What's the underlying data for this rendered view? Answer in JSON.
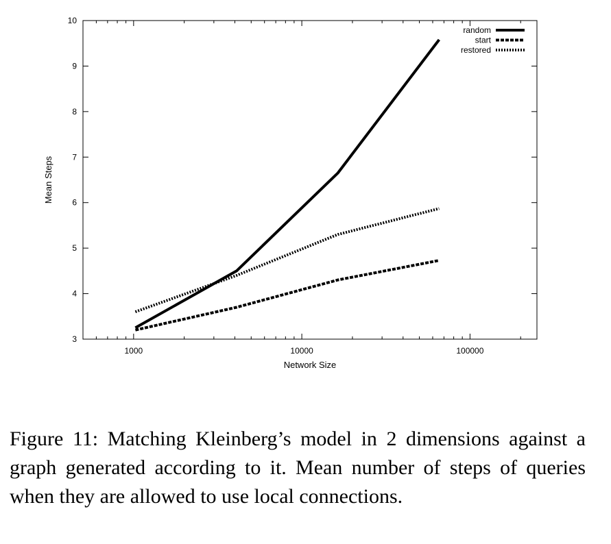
{
  "chart_data": {
    "type": "line",
    "title": "",
    "xlabel": "Network Size",
    "ylabel": "Mean Steps",
    "xscale": "log",
    "xlim": [
      500,
      250000
    ],
    "ylim": [
      3,
      10
    ],
    "x_ticks": [
      1000,
      10000,
      100000
    ],
    "x_tick_labels": [
      "1000",
      "10000",
      "100000"
    ],
    "y_ticks": [
      3,
      4,
      5,
      6,
      7,
      8,
      9,
      10
    ],
    "y_tick_labels": [
      "3",
      "4",
      "5",
      "6",
      "7",
      "8",
      "9",
      "10"
    ],
    "grid": false,
    "legend_position": "top-right",
    "series": [
      {
        "name": "random",
        "style": "solid",
        "x": [
          1024,
          4096,
          16384,
          65536
        ],
        "y": [
          3.25,
          4.5,
          6.65,
          9.58
        ]
      },
      {
        "name": "start",
        "style": "dashed",
        "x": [
          1024,
          4096,
          16384,
          65536
        ],
        "y": [
          3.2,
          3.7,
          4.3,
          4.73
        ]
      },
      {
        "name": "restored",
        "style": "dotted",
        "x": [
          1024,
          4096,
          16384,
          65536
        ],
        "y": [
          3.6,
          4.4,
          5.3,
          5.87
        ]
      }
    ]
  },
  "caption": "Figure 11: Matching Kleinberg’s model in 2 dimensions against a graph generated according to it. Mean number of steps of queries when they are allowed to use local connections."
}
